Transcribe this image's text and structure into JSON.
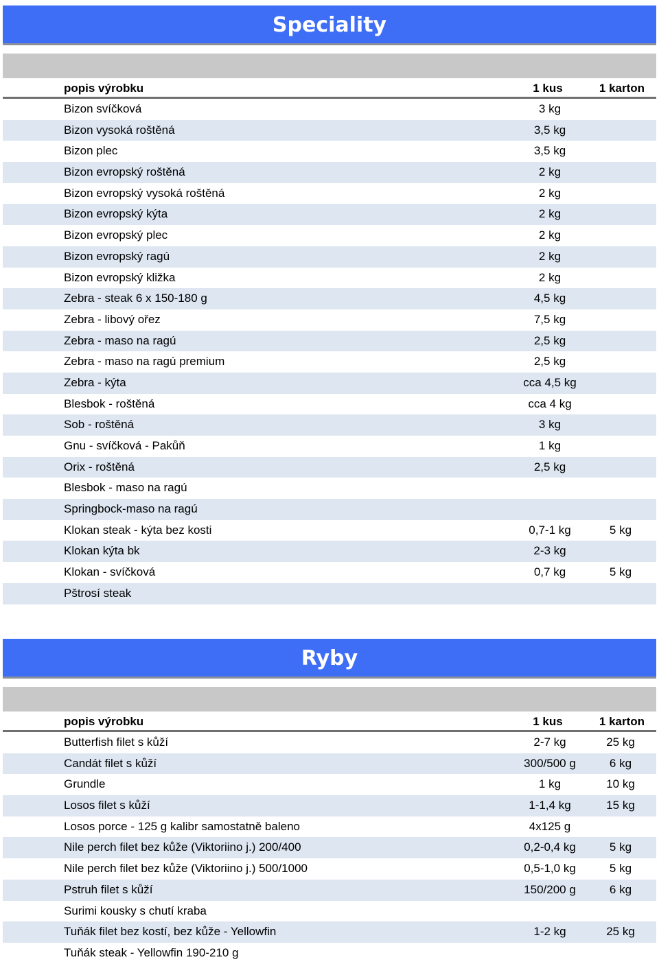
{
  "sections": [
    {
      "title": "Speciality",
      "columns": {
        "name": "popis výrobku",
        "kus": "1 kus",
        "karton": "1 karton"
      },
      "rows": [
        {
          "name": "Bizon svíčková",
          "kus": "3 kg",
          "karton": ""
        },
        {
          "name": "Bizon vysoká roštěná",
          "kus": "3,5 kg",
          "karton": ""
        },
        {
          "name": "Bizon plec",
          "kus": "3,5 kg",
          "karton": ""
        },
        {
          "name": "Bizon evropský roštěná",
          "kus": "2 kg",
          "karton": ""
        },
        {
          "name": "Bizon evropský vysoká roštěná",
          "kus": "2 kg",
          "karton": ""
        },
        {
          "name": "Bizon evropský kýta",
          "kus": "2 kg",
          "karton": ""
        },
        {
          "name": "Bizon evropský plec",
          "kus": "2 kg",
          "karton": ""
        },
        {
          "name": "Bizon evropský ragú",
          "kus": "2 kg",
          "karton": ""
        },
        {
          "name": "Bizon evropský kližka",
          "kus": "2 kg",
          "karton": ""
        },
        {
          "name": "Zebra - steak 6 x 150-180 g",
          "kus": "4,5 kg",
          "karton": ""
        },
        {
          "name": "Zebra - libový ořez",
          "kus": "7,5 kg",
          "karton": ""
        },
        {
          "name": "Zebra - maso na ragú",
          "kus": "2,5 kg",
          "karton": ""
        },
        {
          "name": "Zebra - maso na ragú premium",
          "kus": "2,5 kg",
          "karton": ""
        },
        {
          "name": "Zebra - kýta",
          "kus": "cca 4,5 kg",
          "karton": ""
        },
        {
          "name": "Blesbok - roštěná",
          "kus": "cca 4 kg",
          "karton": ""
        },
        {
          "name": "Sob - roštěná",
          "kus": "3 kg",
          "karton": ""
        },
        {
          "name": "Gnu - svíčková - Pakůň",
          "kus": "1 kg",
          "karton": ""
        },
        {
          "name": "Orix - roštěná",
          "kus": "2,5 kg",
          "karton": ""
        },
        {
          "name": "Blesbok - maso na ragú",
          "kus": "",
          "karton": ""
        },
        {
          "name": "Springbock-maso na ragú",
          "kus": "",
          "karton": ""
        },
        {
          "name": "Klokan steak  - kýta bez kosti",
          "kus": "0,7-1 kg",
          "karton": "5 kg"
        },
        {
          "name": "Klokan kýta bk",
          "kus": "2-3 kg",
          "karton": ""
        },
        {
          "name": "Klokan - svíčková",
          "kus": "0,7 kg",
          "karton": "5 kg"
        },
        {
          "name": "Pštrosí steak",
          "kus": "",
          "karton": ""
        }
      ]
    },
    {
      "title": "Ryby",
      "columns": {
        "name": "popis výrobku",
        "kus": "1 kus",
        "karton": "1 karton"
      },
      "rows": [
        {
          "name": "Butterfish filet s kůží",
          "kus": "2-7 kg",
          "karton": "25 kg"
        },
        {
          "name": "Candát filet s kůží",
          "kus": "300/500 g",
          "karton": "6 kg"
        },
        {
          "name": "Grundle",
          "kus": "1 kg",
          "karton": "10 kg"
        },
        {
          "name": "Losos filet s kůží",
          "kus": "1-1,4 kg",
          "karton": "15 kg"
        },
        {
          "name": "Losos porce - 125 g kalibr samostatně baleno",
          "kus": "4x125 g",
          "karton": ""
        },
        {
          "name": "Nile perch filet bez kůže (Viktoriino j.) 200/400",
          "kus": "0,2-0,4 kg",
          "karton": "5 kg"
        },
        {
          "name": "Nile perch filet bez kůže (Viktoriino j.) 500/1000",
          "kus": "0,5-1,0 kg",
          "karton": "5 kg"
        },
        {
          "name": "Pstruh filet s kůží",
          "kus": "150/200 g",
          "karton": "6 kg"
        },
        {
          "name": "Surimi kousky s chutí kraba",
          "kus": "",
          "karton": ""
        },
        {
          "name": "Tuňák filet bez kostí, bez kůže - Yellowfin",
          "kus": "1-2 kg",
          "karton": "25 kg"
        },
        {
          "name": "Tuňák steak - Yellowfin 190-210 g",
          "kus": "",
          "karton": ""
        }
      ]
    }
  ]
}
